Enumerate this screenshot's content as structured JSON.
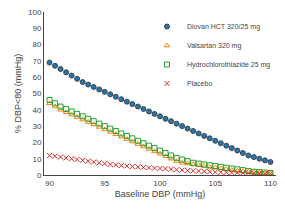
{
  "chart_data": {
    "type": "scatter",
    "xlabel": "Baseline DBP (mmHg)",
    "ylabel": "% DBP<80 (mmHg)",
    "xlim": [
      89.5,
      110.5
    ],
    "ylim": [
      0,
      100
    ],
    "xticks": [
      90,
      95,
      100,
      105,
      110
    ],
    "yticks": [
      0,
      10,
      20,
      30,
      40,
      50,
      60,
      70,
      80,
      90,
      100
    ],
    "grid": false,
    "legend": "upper right",
    "x": [
      90,
      90.5,
      91,
      91.5,
      92,
      92.5,
      93,
      93.5,
      94,
      94.5,
      95,
      95.5,
      96,
      96.5,
      97,
      97.5,
      98,
      98.5,
      99,
      99.5,
      100,
      100.5,
      101,
      101.5,
      102,
      102.5,
      103,
      103.5,
      104,
      104.5,
      105,
      105.5,
      106,
      106.5,
      107,
      107.5,
      108,
      108.5,
      109,
      109.5,
      110
    ],
    "series": [
      {
        "name": "Diovan HCT 320/25 mg",
        "marker": "circle",
        "values": [
          69,
          67,
          65,
          63,
          61,
          59,
          57,
          55.5,
          54,
          52.5,
          51,
          49.5,
          48,
          46.5,
          45,
          43.5,
          42,
          40.5,
          39,
          37.5,
          36,
          34.5,
          33,
          31.5,
          30,
          28.5,
          27,
          25.5,
          24,
          22.5,
          21,
          19.5,
          18,
          16.5,
          15,
          13.5,
          12,
          11,
          10,
          9,
          8
        ]
      },
      {
        "name": "Valsartan 320 mg",
        "marker": "triangle-open",
        "values": [
          44,
          42,
          40,
          38.5,
          37,
          35.5,
          34,
          32.5,
          31,
          29.5,
          28,
          26.5,
          25,
          23.5,
          22,
          20.5,
          19,
          17.5,
          16,
          14.5,
          13,
          11.5,
          10,
          8.5,
          7.5,
          7,
          6.5,
          6,
          5.5,
          5,
          4.5,
          4,
          3.5,
          3,
          2.5,
          2.2,
          2,
          1.8,
          1.5,
          1.2,
          1.0
        ]
      },
      {
        "name": "Hydrochlorothiazide 25 mg",
        "marker": "square-open",
        "values": [
          46,
          44,
          42,
          40.5,
          39,
          37.5,
          36,
          34.5,
          33,
          31.5,
          30,
          28.5,
          27,
          25.5,
          24,
          22.5,
          21,
          19.5,
          18,
          16.5,
          15,
          13.5,
          12,
          10.5,
          9.5,
          8.5,
          7.5,
          7,
          6.5,
          6,
          5.5,
          5,
          4.5,
          4,
          3.5,
          3,
          2.5,
          2,
          1.8,
          1.5,
          1.2
        ]
      },
      {
        "name": "Placebo",
        "marker": "x",
        "values": [
          12,
          11.5,
          11,
          10.5,
          10,
          9.5,
          9,
          8.5,
          8,
          7.5,
          7,
          6.5,
          6.2,
          5.8,
          5.5,
          5.2,
          5,
          4.7,
          4.5,
          4.2,
          4,
          3.8,
          3.5,
          3.2,
          3,
          2.8,
          2.6,
          2.4,
          2.2,
          2,
          1.8,
          1.7,
          1.6,
          1.5,
          1.4,
          1.3,
          1.2,
          1.1,
          1,
          0.9,
          0.8
        ]
      }
    ]
  }
}
